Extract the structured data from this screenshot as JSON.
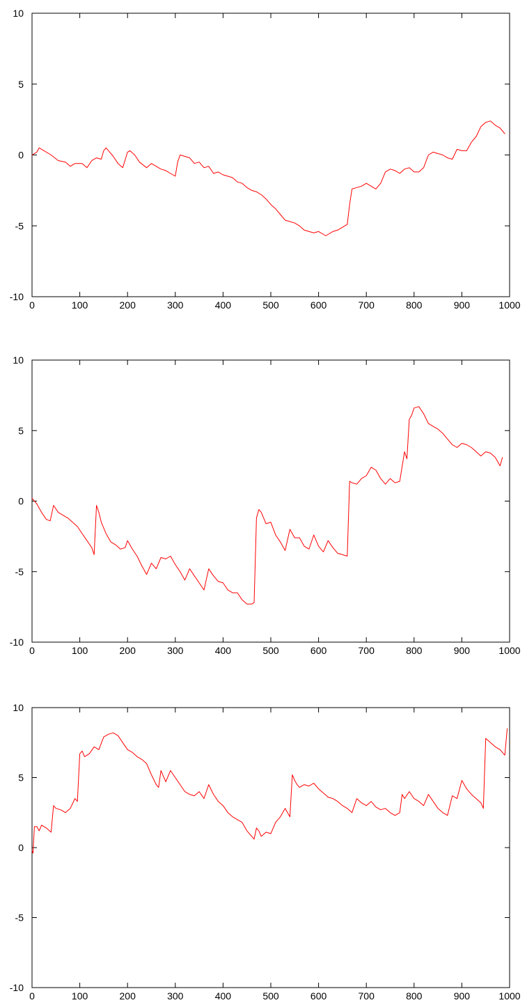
{
  "chart_data": [
    {
      "type": "line",
      "title": "",
      "xlabel": "",
      "ylabel": "",
      "xlim": [
        0,
        1000
      ],
      "ylim": [
        -10,
        10
      ],
      "xticks": [
        0,
        100,
        200,
        300,
        400,
        500,
        600,
        700,
        800,
        900,
        1000
      ],
      "yticks": [
        -10,
        -5,
        0,
        5,
        10
      ],
      "grid": false,
      "legend": "none",
      "color": "#ff0000",
      "series": [
        {
          "x": [
            0,
            10,
            15,
            25,
            40,
            55,
            70,
            80,
            90,
            105,
            115,
            125,
            135,
            145,
            150,
            155,
            160,
            170,
            180,
            190,
            200,
            205,
            215,
            225,
            240,
            250,
            260,
            270,
            280,
            290,
            300,
            305,
            310,
            320,
            330,
            340,
            350,
            360,
            370,
            380,
            390,
            400,
            410,
            420,
            430,
            440,
            450,
            460,
            470,
            480,
            490,
            500,
            510,
            520,
            530,
            540,
            550,
            560,
            570,
            580,
            590,
            600,
            610,
            615,
            620,
            630,
            640,
            650,
            660,
            665,
            670,
            680,
            690,
            700,
            710,
            720,
            730,
            740,
            750,
            760,
            770,
            780,
            790,
            800,
            810,
            820,
            830,
            840,
            850,
            860,
            870,
            880,
            890,
            900,
            910,
            920,
            930,
            940,
            950,
            960,
            970,
            980,
            990
          ],
          "y": [
            0,
            0.2,
            0.5,
            0.3,
            0,
            -0.4,
            -0.5,
            -0.8,
            -0.6,
            -0.6,
            -0.9,
            -0.4,
            -0.2,
            -0.3,
            0.3,
            0.5,
            0.3,
            -0.1,
            -0.6,
            -0.9,
            0.2,
            0.3,
            0,
            -0.5,
            -0.9,
            -0.6,
            -0.8,
            -1,
            -1.1,
            -1.3,
            -1.5,
            -0.5,
            0,
            -0.1,
            -0.2,
            -0.6,
            -0.5,
            -0.9,
            -0.8,
            -1.3,
            -1.2,
            -1.4,
            -1.5,
            -1.6,
            -1.9,
            -2,
            -2.3,
            -2.5,
            -2.6,
            -2.8,
            -3.1,
            -3.5,
            -3.8,
            -4.2,
            -4.6,
            -4.7,
            -4.8,
            -5,
            -5.3,
            -5.4,
            -5.5,
            -5.4,
            -5.6,
            -5.7,
            -5.6,
            -5.4,
            -5.3,
            -5.1,
            -4.9,
            -3.5,
            -2.4,
            -2.3,
            -2.2,
            -2.0,
            -2.2,
            -2.4,
            -2.0,
            -1.2,
            -1.0,
            -1.1,
            -1.3,
            -1.0,
            -0.9,
            -1.2,
            -1.2,
            -0.9,
            0,
            0.2,
            0.1,
            0,
            -0.2,
            -0.3,
            0.4,
            0.3,
            0.3,
            0.9,
            1.3,
            2.0,
            2.3,
            2.4,
            2.1,
            1.9,
            1.5
          ]
        }
      ]
    },
    {
      "type": "line",
      "title": "",
      "xlabel": "",
      "ylabel": "",
      "xlim": [
        0,
        1000
      ],
      "ylim": [
        -10,
        10
      ],
      "xticks": [
        0,
        100,
        200,
        300,
        400,
        500,
        600,
        700,
        800,
        900,
        1000
      ],
      "yticks": [
        -10,
        -5,
        0,
        5,
        10
      ],
      "grid": false,
      "legend": "none",
      "color": "#ff0000",
      "series": [
        {
          "x": [
            0,
            10,
            20,
            30,
            38,
            45,
            55,
            65,
            75,
            85,
            95,
            105,
            115,
            125,
            130,
            135,
            140,
            145,
            155,
            165,
            175,
            185,
            195,
            200,
            210,
            220,
            230,
            240,
            250,
            260,
            270,
            280,
            290,
            300,
            310,
            320,
            330,
            340,
            350,
            360,
            370,
            380,
            390,
            400,
            410,
            420,
            430,
            440,
            450,
            460,
            465,
            470,
            475,
            480,
            490,
            500,
            510,
            520,
            530,
            540,
            545,
            550,
            560,
            570,
            580,
            590,
            600,
            610,
            620,
            630,
            640,
            650,
            660,
            665,
            670,
            680,
            690,
            700,
            710,
            720,
            730,
            740,
            750,
            760,
            770,
            780,
            785,
            790,
            795,
            800,
            810,
            820,
            830,
            840,
            850,
            860,
            870,
            880,
            890,
            900,
            910,
            920,
            930,
            940,
            950,
            960,
            970,
            980,
            985
          ],
          "y": [
            0.2,
            -0.2,
            -0.8,
            -1.3,
            -1.4,
            -0.3,
            -0.8,
            -1.0,
            -1.2,
            -1.5,
            -1.8,
            -2.3,
            -2.8,
            -3.3,
            -3.8,
            -0.3,
            -0.8,
            -1.5,
            -2.3,
            -2.9,
            -3.1,
            -3.4,
            -3.3,
            -2.8,
            -3.4,
            -3.9,
            -4.6,
            -5.2,
            -4.4,
            -4.8,
            -4.0,
            -4.1,
            -3.9,
            -4.5,
            -5.0,
            -5.6,
            -4.8,
            -5.3,
            -5.8,
            -6.3,
            -4.8,
            -5.3,
            -5.7,
            -5.8,
            -6.3,
            -6.5,
            -6.5,
            -7.0,
            -7.3,
            -7.3,
            -7.2,
            -1.2,
            -0.6,
            -0.8,
            -1.6,
            -1.5,
            -2.4,
            -2.9,
            -3.5,
            -2.0,
            -2.3,
            -2.6,
            -2.6,
            -3.2,
            -3.4,
            -2.4,
            -3.2,
            -3.6,
            -2.8,
            -3.3,
            -3.7,
            -3.8,
            -3.9,
            1.4,
            1.3,
            1.2,
            1.6,
            1.8,
            2.4,
            2.2,
            1.6,
            1.2,
            1.6,
            1.3,
            1.4,
            3.5,
            3.0,
            5.8,
            6.1,
            6.6,
            6.7,
            6.2,
            5.5,
            5.3,
            5.1,
            4.8,
            4.4,
            4.0,
            3.8,
            4.1,
            4.0,
            3.8,
            3.5,
            3.2,
            3.5,
            3.4,
            3.1,
            2.5,
            3.1
          ]
        }
      ]
    },
    {
      "type": "line",
      "title": "",
      "xlabel": "",
      "ylabel": "",
      "xlim": [
        0,
        1000
      ],
      "ylim": [
        -10,
        10
      ],
      "xticks": [
        0,
        100,
        200,
        300,
        400,
        500,
        600,
        700,
        800,
        900,
        1000
      ],
      "yticks": [
        -10,
        -5,
        0,
        5,
        10
      ],
      "grid": false,
      "legend": "none",
      "color": "#ff0000",
      "series": [
        {
          "x": [
            0,
            2,
            5,
            10,
            15,
            20,
            30,
            40,
            45,
            50,
            60,
            70,
            80,
            90,
            95,
            100,
            105,
            110,
            120,
            130,
            140,
            150,
            155,
            160,
            170,
            180,
            190,
            200,
            210,
            220,
            230,
            240,
            250,
            260,
            265,
            270,
            280,
            290,
            300,
            310,
            320,
            330,
            340,
            350,
            360,
            370,
            380,
            390,
            400,
            410,
            420,
            430,
            440,
            450,
            460,
            465,
            470,
            475,
            480,
            490,
            500,
            510,
            520,
            530,
            540,
            545,
            550,
            555,
            560,
            570,
            580,
            590,
            600,
            610,
            620,
            630,
            640,
            650,
            660,
            670,
            680,
            690,
            700,
            710,
            720,
            730,
            740,
            750,
            760,
            770,
            775,
            780,
            790,
            800,
            810,
            820,
            830,
            840,
            850,
            860,
            870,
            880,
            890,
            900,
            910,
            920,
            930,
            940,
            945,
            950,
            960,
            970,
            980,
            990,
            995
          ],
          "y": [
            -0.2,
            -0.4,
            1.5,
            1.5,
            1.2,
            1.6,
            1.4,
            1.1,
            3.0,
            2.8,
            2.7,
            2.5,
            2.8,
            3.5,
            3.3,
            6.7,
            6.9,
            6.5,
            6.7,
            7.2,
            7.0,
            7.9,
            8.0,
            8.1,
            8.2,
            8.0,
            7.5,
            7.0,
            6.8,
            6.5,
            6.3,
            6.0,
            5.2,
            4.5,
            4.3,
            5.5,
            4.7,
            5.5,
            5.0,
            4.5,
            4.0,
            3.8,
            3.7,
            4.0,
            3.5,
            4.5,
            3.8,
            3.3,
            3.0,
            2.5,
            2.2,
            2.0,
            1.8,
            1.2,
            0.8,
            0.6,
            1.4,
            1.2,
            0.8,
            1.1,
            1.0,
            1.8,
            2.2,
            2.8,
            2.2,
            5.2,
            4.8,
            4.5,
            4.3,
            4.5,
            4.4,
            4.6,
            4.2,
            3.9,
            3.6,
            3.5,
            3.3,
            3.0,
            2.8,
            2.5,
            3.5,
            3.2,
            3.0,
            3.3,
            2.9,
            2.7,
            2.8,
            2.5,
            2.3,
            2.5,
            3.8,
            3.5,
            4.0,
            3.5,
            3.3,
            3.0,
            3.8,
            3.3,
            2.8,
            2.5,
            2.3,
            3.7,
            3.5,
            4.8,
            4.2,
            3.8,
            3.5,
            3.2,
            2.8,
            7.8,
            7.5,
            7.2,
            7.0,
            6.6,
            8.5
          ]
        }
      ]
    }
  ]
}
